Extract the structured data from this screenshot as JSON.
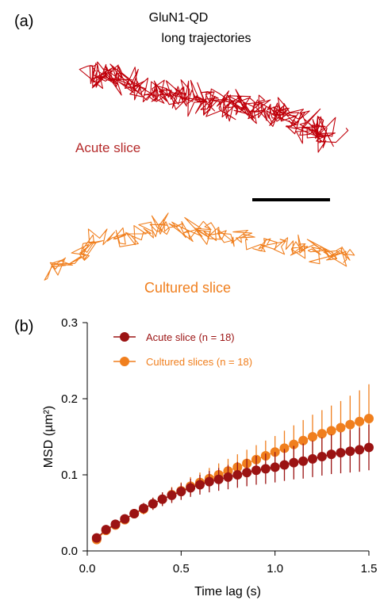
{
  "panel_a": {
    "label": "(a)",
    "title_line1": "GluN1-QD",
    "title_line2": "long  trajectories",
    "acute_label": "Acute slice",
    "cultured_label": "Cultured slice"
  },
  "panel_b": {
    "label": "(b)"
  },
  "colors": {
    "acute": "#c0000a",
    "acute_dark": "#9b1313",
    "cultured": "#f07f1e"
  },
  "chart_data": {
    "type": "scatter",
    "xlabel": "Time lag (s)",
    "ylabel": "MSD (µm²)",
    "xlim": [
      0,
      1.5
    ],
    "ylim": [
      0,
      0.3
    ],
    "xticks": [
      0,
      0.5,
      1,
      1.5
    ],
    "xtick_labels": [
      "0.0",
      "0.5",
      "1.0",
      "1.5"
    ],
    "yticks": [
      0,
      0.1,
      0.2,
      0.3
    ],
    "ytick_labels": [
      "0.0",
      "0.1",
      "0.2",
      "0.3"
    ],
    "legend_position": "top-left",
    "x": [
      0.05,
      0.1,
      0.15,
      0.2,
      0.25,
      0.3,
      0.35,
      0.4,
      0.45,
      0.5,
      0.55,
      0.6,
      0.65,
      0.7,
      0.75,
      0.8,
      0.85,
      0.9,
      0.95,
      1.0,
      1.05,
      1.1,
      1.15,
      1.2,
      1.25,
      1.3,
      1.35,
      1.4,
      1.45,
      1.5
    ],
    "series": [
      {
        "name": "Cultured slices (n = 18)",
        "color": "#f07f1e",
        "values": [
          0.015,
          0.027,
          0.034,
          0.041,
          0.049,
          0.055,
          0.062,
          0.068,
          0.074,
          0.079,
          0.085,
          0.09,
          0.095,
          0.1,
          0.105,
          0.11,
          0.115,
          0.12,
          0.125,
          0.13,
          0.135,
          0.14,
          0.145,
          0.15,
          0.154,
          0.158,
          0.162,
          0.166,
          0.17,
          0.174
        ],
        "err": [
          0.002,
          0.003,
          0.004,
          0.005,
          0.006,
          0.007,
          0.008,
          0.009,
          0.01,
          0.011,
          0.012,
          0.013,
          0.014,
          0.015,
          0.016,
          0.017,
          0.018,
          0.019,
          0.02,
          0.021,
          0.023,
          0.025,
          0.027,
          0.029,
          0.031,
          0.033,
          0.035,
          0.038,
          0.041,
          0.045
        ]
      },
      {
        "name": "Acute slice (n = 18)",
        "color": "#9b1313",
        "values": [
          0.017,
          0.028,
          0.035,
          0.042,
          0.049,
          0.056,
          0.062,
          0.068,
          0.073,
          0.078,
          0.083,
          0.087,
          0.091,
          0.094,
          0.097,
          0.1,
          0.103,
          0.106,
          0.108,
          0.11,
          0.113,
          0.116,
          0.118,
          0.121,
          0.124,
          0.127,
          0.129,
          0.131,
          0.133,
          0.136
        ],
        "err": [
          0.002,
          0.003,
          0.004,
          0.005,
          0.006,
          0.007,
          0.008,
          0.009,
          0.01,
          0.011,
          0.012,
          0.013,
          0.014,
          0.015,
          0.016,
          0.017,
          0.018,
          0.019,
          0.02,
          0.02,
          0.021,
          0.022,
          0.023,
          0.024,
          0.025,
          0.026,
          0.027,
          0.028,
          0.029,
          0.03
        ]
      }
    ]
  }
}
